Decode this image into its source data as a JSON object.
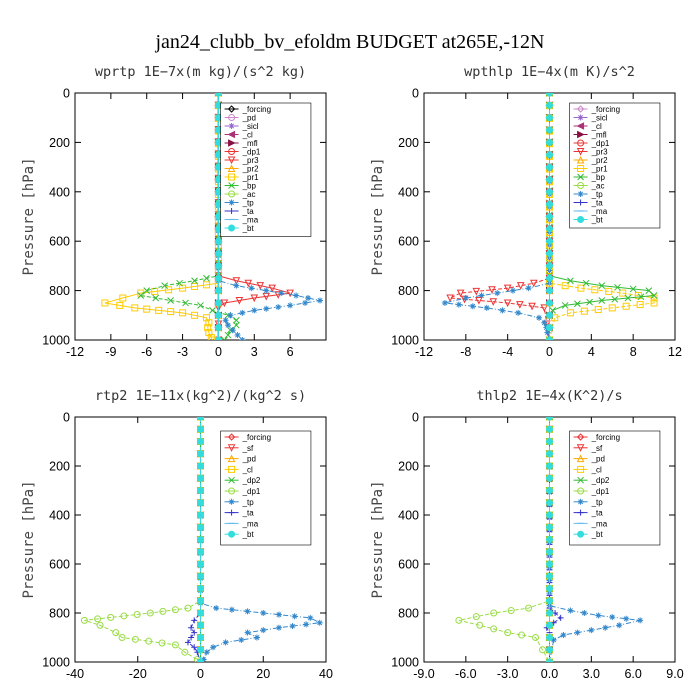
{
  "title": "jan24_clubb_bv_efoldm  BUDGET at265E,-12N",
  "chart_data": [
    {
      "type": "line",
      "title": "wprtp  1E−7x(m kg)/(s^2 kg)",
      "ylabel": "Pressure [hPa]",
      "xlim": [
        -12,
        9
      ],
      "ylim": [
        1000,
        0
      ],
      "xticks": [
        -12,
        -9,
        -6,
        -3,
        0,
        3,
        6
      ],
      "xticklabels": [
        "-12",
        "-9",
        "-6",
        "-3",
        "0",
        "3",
        "6"
      ],
      "yticks": [
        0,
        200,
        400,
        600,
        800,
        1000
      ],
      "yticklabels": [
        "0",
        "200",
        "400",
        "600",
        "800",
        "1000"
      ],
      "legend_position": "top-right",
      "series": [
        {
          "name": "_forcing",
          "color": "#000000",
          "marker": "diamond",
          "y": [
            0,
            1000
          ],
          "x": [
            0,
            0
          ]
        },
        {
          "name": "_pd",
          "color": "#cc88cc",
          "marker": "circle",
          "y": [
            0,
            1000
          ],
          "x": [
            0,
            0
          ]
        },
        {
          "name": "_sicl",
          "color": "#9966cc",
          "marker": "star",
          "y": [
            0,
            1000
          ],
          "x": [
            0,
            0
          ]
        },
        {
          "name": "_cl",
          "color": "#aa3377",
          "marker": "tri-left",
          "y": [
            0,
            1000
          ],
          "x": [
            0,
            0
          ]
        },
        {
          "name": "_mfl",
          "color": "#881144",
          "marker": "tri-right",
          "y": [
            0,
            1000
          ],
          "x": [
            0,
            0
          ]
        },
        {
          "name": "_dp1",
          "color": "#ee3333",
          "marker": "circle",
          "y": [
            0,
            1000
          ],
          "x": [
            0,
            0
          ]
        },
        {
          "name": "_pr3",
          "color": "#ee3333",
          "marker": "tri-down",
          "y": [
            0,
            740,
            760,
            790,
            810,
            830,
            850,
            870,
            1000
          ],
          "x": [
            0,
            0,
            1.5,
            4.5,
            6,
            3,
            0.5,
            0,
            0
          ]
        },
        {
          "name": "_pr2",
          "color": "#ffaa00",
          "marker": "tri-up",
          "y": [
            0,
            1000
          ],
          "x": [
            0,
            0
          ]
        },
        {
          "name": "_pr1",
          "color": "#ffcc00",
          "marker": "square",
          "y": [
            0,
            770,
            790,
            810,
            830,
            850,
            870,
            890,
            910,
            930,
            950,
            970,
            990,
            1000
          ],
          "x": [
            0,
            0,
            -3,
            -6.5,
            -8,
            -9.5,
            -7,
            -3,
            -1,
            -0.8,
            -0.9,
            -0.8,
            -0.6,
            -0.5
          ]
        },
        {
          "name": "_bp",
          "color": "#33bb33",
          "marker": "x",
          "y": [
            0,
            740,
            760,
            780,
            800,
            820,
            840,
            860,
            880,
            900,
            920,
            940,
            960,
            980,
            1000
          ],
          "x": [
            0,
            0,
            -2,
            -4.5,
            -6,
            -6.5,
            -4,
            -1.5,
            -0.5,
            0.8,
            1.5,
            1.5,
            1,
            0.8,
            0.5
          ]
        },
        {
          "name": "_ac",
          "color": "#99dd44",
          "marker": "circle",
          "y": [
            0,
            1000
          ],
          "x": [
            0,
            0
          ]
        },
        {
          "name": "_tp",
          "color": "#3388cc",
          "marker": "asterisk",
          "y": [
            0,
            760,
            780,
            800,
            820,
            840,
            860,
            880,
            900,
            920,
            940,
            960,
            980,
            1000
          ],
          "x": [
            0,
            0,
            1.5,
            4,
            6.5,
            8.5,
            6,
            3,
            1,
            0.6,
            0.8,
            1.2,
            1.6,
            2
          ]
        },
        {
          "name": "_ta",
          "color": "#3333cc",
          "marker": "plus",
          "y": [
            0,
            1000
          ],
          "x": [
            0,
            0
          ]
        },
        {
          "name": "_ma",
          "color": "#66bbee",
          "marker": "dash",
          "y": [
            0,
            1000
          ],
          "x": [
            0,
            0
          ]
        },
        {
          "name": "_bt",
          "color": "#33dddd",
          "marker": "circle-filled",
          "y": [
            0,
            1000
          ],
          "x": [
            0,
            0
          ]
        }
      ]
    },
    {
      "type": "line",
      "title": "wpthlp  1E−4x(m K)/s^2",
      "ylabel": "Pressure [hPa]",
      "xlim": [
        -12,
        12
      ],
      "ylim": [
        1000,
        0
      ],
      "xticks": [
        -12,
        -8,
        -4,
        0,
        4,
        8,
        12
      ],
      "xticklabels": [
        "-12",
        "-8",
        "-4",
        "0",
        "4",
        "8",
        "12"
      ],
      "yticks": [
        0,
        200,
        400,
        600,
        800,
        1000
      ],
      "yticklabels": [
        "0",
        "200",
        "400",
        "600",
        "800",
        "1000"
      ],
      "legend_position": "top-right",
      "series": [
        {
          "name": "_forcing",
          "color": "#cc88cc",
          "marker": "diamond",
          "y": [
            0,
            1000
          ],
          "x": [
            0,
            0
          ]
        },
        {
          "name": "_sicl",
          "color": "#9966cc",
          "marker": "star",
          "y": [
            0,
            1000
          ],
          "x": [
            0,
            0
          ]
        },
        {
          "name": "_cl",
          "color": "#aa3377",
          "marker": "tri-left",
          "y": [
            0,
            1000
          ],
          "x": [
            0,
            0
          ]
        },
        {
          "name": "_mfl",
          "color": "#881144",
          "marker": "tri-right",
          "y": [
            0,
            1000
          ],
          "x": [
            0,
            0
          ]
        },
        {
          "name": "_dp1",
          "color": "#ee3333",
          "marker": "circle",
          "y": [
            0,
            1000
          ],
          "x": [
            0,
            0
          ]
        },
        {
          "name": "_pr3",
          "color": "#ee3333",
          "marker": "tri-down",
          "y": [
            0,
            750,
            770,
            790,
            810,
            830,
            850,
            870,
            1000
          ],
          "x": [
            0,
            0,
            -1.5,
            -4,
            -8.5,
            -9.5,
            -4,
            -0.5,
            0
          ]
        },
        {
          "name": "_pr2",
          "color": "#ffaa00",
          "marker": "tri-up",
          "y": [
            0,
            1000
          ],
          "x": [
            0,
            0
          ]
        },
        {
          "name": "_pr1",
          "color": "#ffcc00",
          "marker": "square",
          "y": [
            0,
            770,
            790,
            810,
            830,
            850,
            870,
            890,
            910,
            1000
          ],
          "x": [
            0,
            0,
            3,
            7,
            10,
            10,
            6,
            2,
            0.5,
            0
          ]
        },
        {
          "name": "_bp",
          "color": "#33bb33",
          "marker": "x",
          "y": [
            0,
            740,
            760,
            780,
            800,
            820,
            840,
            860,
            880,
            900,
            1000
          ],
          "x": [
            0,
            0,
            2,
            5,
            9.5,
            10,
            5,
            1.5,
            0.3,
            0,
            0
          ]
        },
        {
          "name": "_ac",
          "color": "#99dd44",
          "marker": "circle",
          "y": [
            0,
            1000
          ],
          "x": [
            0,
            0
          ]
        },
        {
          "name": "_tp",
          "color": "#3388cc",
          "marker": "asterisk",
          "y": [
            0,
            770,
            790,
            810,
            830,
            850,
            870,
            890,
            910,
            930,
            950,
            970,
            1000
          ],
          "x": [
            0,
            0,
            -2,
            -5,
            -8,
            -10,
            -6,
            -3,
            -1,
            -0.5,
            -0.3,
            -0.2,
            0
          ]
        },
        {
          "name": "_ta",
          "color": "#3333cc",
          "marker": "plus",
          "y": [
            0,
            1000
          ],
          "x": [
            0,
            0
          ]
        },
        {
          "name": "_ma",
          "color": "#66bbee",
          "marker": "dash",
          "y": [
            0,
            1000
          ],
          "x": [
            0,
            0
          ]
        },
        {
          "name": "_bt",
          "color": "#33dddd",
          "marker": "circle-filled",
          "y": [
            0,
            1000
          ],
          "x": [
            0,
            0
          ]
        }
      ]
    },
    {
      "type": "line",
      "title": "rtp2  1E−11x(kg^2)/(kg^2 s)",
      "ylabel": "Pressure [hPa]",
      "xlim": [
        -40,
        40
      ],
      "ylim": [
        1000,
        0
      ],
      "xticks": [
        -40,
        -20,
        0,
        20,
        40
      ],
      "xticklabels": [
        "-40",
        "-20",
        "0",
        "20",
        "40"
      ],
      "yticks": [
        0,
        200,
        400,
        600,
        800,
        1000
      ],
      "yticklabels": [
        "0",
        "200",
        "400",
        "600",
        "800",
        "1000"
      ],
      "legend_position": "top-right",
      "series": [
        {
          "name": "_forcing",
          "color": "#ee3333",
          "marker": "diamond",
          "y": [
            0,
            1000
          ],
          "x": [
            0,
            0
          ]
        },
        {
          "name": "_sf",
          "color": "#ee3333",
          "marker": "tri-down",
          "y": [
            0,
            1000
          ],
          "x": [
            0,
            0
          ]
        },
        {
          "name": "_pd",
          "color": "#ffaa00",
          "marker": "tri-up",
          "y": [
            0,
            1000
          ],
          "x": [
            0,
            0
          ]
        },
        {
          "name": "_cl",
          "color": "#ffcc00",
          "marker": "square",
          "y": [
            0,
            1000
          ],
          "x": [
            0,
            0
          ]
        },
        {
          "name": "_dp2",
          "color": "#33bb33",
          "marker": "x",
          "y": [
            0,
            1000
          ],
          "x": [
            0,
            0
          ]
        },
        {
          "name": "_dp1",
          "color": "#99dd44",
          "marker": "circle",
          "y": [
            0,
            750,
            780,
            800,
            830,
            850,
            880,
            900,
            930,
            960,
            990,
            1000
          ],
          "x": [
            0,
            0,
            -4,
            -16,
            -37,
            -32,
            -27,
            -25,
            -8,
            -5,
            -1,
            0
          ]
        },
        {
          "name": "_tp",
          "color": "#3388cc",
          "marker": "asterisk",
          "y": [
            0,
            760,
            780,
            800,
            820,
            840,
            860,
            880,
            900,
            920,
            940,
            960,
            990,
            1000
          ],
          "x": [
            0,
            0,
            5,
            20,
            35,
            38,
            25,
            15,
            18,
            8,
            4,
            2,
            1,
            0
          ]
        },
        {
          "name": "_ta",
          "color": "#3333cc",
          "marker": "plus",
          "y": [
            0,
            800,
            830,
            860,
            880,
            900,
            920,
            940,
            960,
            1000
          ],
          "x": [
            0,
            0,
            -2,
            -3,
            -2,
            -3,
            -4,
            -2,
            -1,
            0
          ]
        },
        {
          "name": "_ma",
          "color": "#66bbee",
          "marker": "dash",
          "y": [
            0,
            1000
          ],
          "x": [
            0,
            0
          ]
        },
        {
          "name": "_bt",
          "color": "#33dddd",
          "marker": "circle-filled",
          "y": [
            0,
            1000
          ],
          "x": [
            0,
            0
          ]
        }
      ]
    },
    {
      "type": "line",
      "title": "thlp2  1E−4x(K^2)/s",
      "ylabel": "Pressure [hPa]",
      "xlim": [
        -9,
        9
      ],
      "ylim": [
        1000,
        0
      ],
      "xticks": [
        -9,
        -6,
        -3,
        0,
        3,
        6,
        9
      ],
      "xticklabels": [
        "-9.0",
        "-6.0",
        "-3.0",
        "0.0",
        "3.0",
        "6.0",
        "9.0"
      ],
      "yticks": [
        0,
        200,
        400,
        600,
        800,
        1000
      ],
      "yticklabels": [
        "0",
        "200",
        "400",
        "600",
        "800",
        "1000"
      ],
      "legend_position": "top-right",
      "series": [
        {
          "name": "_forcing",
          "color": "#ee3333",
          "marker": "diamond",
          "y": [
            0,
            1000
          ],
          "x": [
            0,
            0
          ]
        },
        {
          "name": "_sf",
          "color": "#ee3333",
          "marker": "tri-down",
          "y": [
            0,
            1000
          ],
          "x": [
            0,
            0
          ]
        },
        {
          "name": "_pd",
          "color": "#ffaa00",
          "marker": "tri-up",
          "y": [
            0,
            1000
          ],
          "x": [
            0,
            0
          ]
        },
        {
          "name": "_cl",
          "color": "#ffcc00",
          "marker": "square",
          "y": [
            0,
            1000
          ],
          "x": [
            0,
            0
          ]
        },
        {
          "name": "_dp2",
          "color": "#33bb33",
          "marker": "x",
          "y": [
            0,
            1000
          ],
          "x": [
            0,
            0
          ]
        },
        {
          "name": "_dp1",
          "color": "#99dd44",
          "marker": "circle",
          "y": [
            0,
            750,
            780,
            800,
            830,
            850,
            880,
            900,
            1000
          ],
          "x": [
            0,
            0,
            -1.5,
            -4,
            -6.5,
            -5,
            -3,
            -1,
            0
          ]
        },
        {
          "name": "_tp",
          "color": "#3388cc",
          "marker": "asterisk",
          "y": [
            0,
            770,
            790,
            810,
            830,
            850,
            870,
            890,
            910,
            1000
          ],
          "x": [
            0,
            0,
            1.5,
            3.5,
            6.5,
            5,
            3,
            1,
            0.3,
            0
          ]
        },
        {
          "name": "_ta",
          "color": "#3333cc",
          "marker": "plus",
          "y": [
            0,
            780,
            800,
            820,
            840,
            860,
            880,
            1000
          ],
          "x": [
            0,
            0,
            0.4,
            0.8,
            0.3,
            -0.2,
            0,
            0
          ]
        },
        {
          "name": "_ma",
          "color": "#66bbee",
          "marker": "dash",
          "y": [
            0,
            1000
          ],
          "x": [
            0,
            0
          ]
        },
        {
          "name": "_bt",
          "color": "#33dddd",
          "marker": "circle-filled",
          "y": [
            0,
            1000
          ],
          "x": [
            0,
            0
          ]
        }
      ]
    }
  ]
}
